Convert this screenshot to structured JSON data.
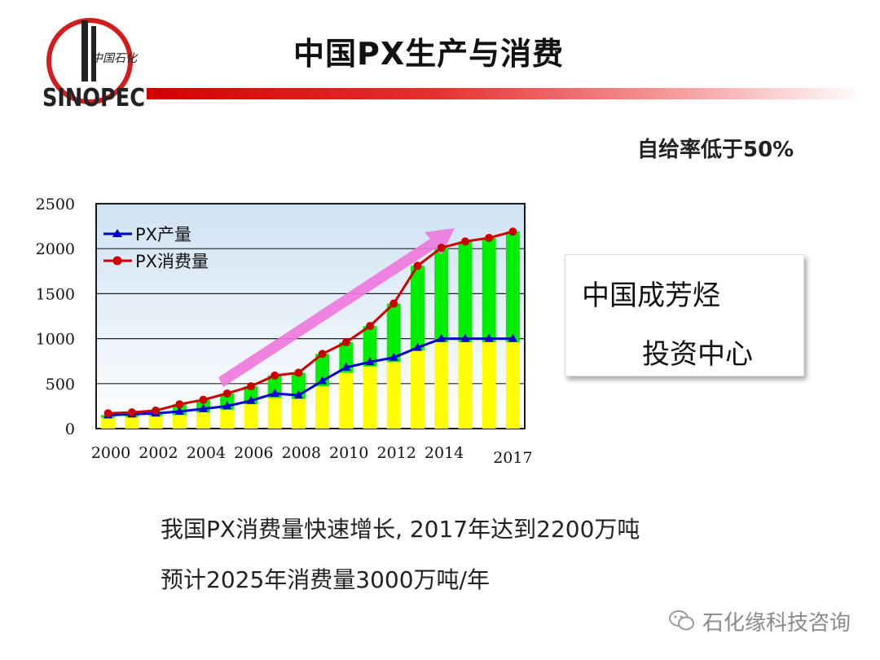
{
  "header": {
    "title": "中国PX生产与消费",
    "logo_text": "中国石化",
    "logo_brand": "SINOPEC"
  },
  "note": "自给率低于50%",
  "callout": {
    "line1": "中国成芳烃",
    "line2": "投资中心"
  },
  "bullets": [
    "我国PX消费量快速增长, 2017年达到2200万吨",
    "预计2025年消费量3000万吨/年"
  ],
  "watermark": "石化缘科技咨询",
  "chart_data": {
    "type": "bar",
    "title": "",
    "xlabel": "",
    "ylabel": "",
    "ylim": [
      0,
      2500
    ],
    "yticks": [
      "0",
      "500",
      "1000",
      "1500",
      "2000",
      "2500"
    ],
    "xtick_labels": [
      "2000",
      "2002",
      "2004",
      "2006",
      "2008",
      "2010",
      "2012",
      "2014",
      "2017"
    ],
    "categories": [
      "2000",
      "2001",
      "2002",
      "2003",
      "2004",
      "2005",
      "2006",
      "2007",
      "2008",
      "2009",
      "2010",
      "2011",
      "2012",
      "2013",
      "2014",
      "2015",
      "2016",
      "2017"
    ],
    "legend_position": "top-left",
    "series": [
      {
        "name": "PX产量",
        "kind": "line",
        "color": "#0000cc",
        "marker": "triangle",
        "values": [
          150,
          160,
          170,
          190,
          220,
          250,
          310,
          390,
          370,
          530,
          680,
          740,
          790,
          900,
          1000,
          1000,
          1000,
          1000
        ]
      },
      {
        "name": "PX消费量",
        "kind": "line",
        "color": "#cc0000",
        "marker": "circle",
        "values": [
          170,
          180,
          200,
          270,
          320,
          390,
          470,
          590,
          620,
          830,
          960,
          1140,
          1390,
          1810,
          2010,
          2080,
          2120,
          2190
        ]
      },
      {
        "kind": "stack-bottom",
        "color": "#ffff00",
        "values": [
          120,
          130,
          140,
          150,
          180,
          210,
          270,
          340,
          330,
          470,
          620,
          690,
          740,
          870,
          960,
          960,
          960,
          960
        ]
      },
      {
        "kind": "stack-top",
        "color": "#00ee00",
        "values": [
          30,
          40,
          50,
          120,
          140,
          180,
          200,
          250,
          290,
          360,
          340,
          450,
          650,
          940,
          1050,
          1120,
          1160,
          1230
        ]
      }
    ],
    "annotation": "upward trend arrow"
  },
  "colors": {
    "plot_bg_top": "#cfe2f3",
    "plot_bg_bottom": "#ffffff",
    "bar_yellow": "#ffff00",
    "bar_green": "#00ee00",
    "line_blue": "#0000cc",
    "line_red": "#cc0000",
    "arrow": "#ee77dd",
    "title_bar": "#d40000"
  }
}
